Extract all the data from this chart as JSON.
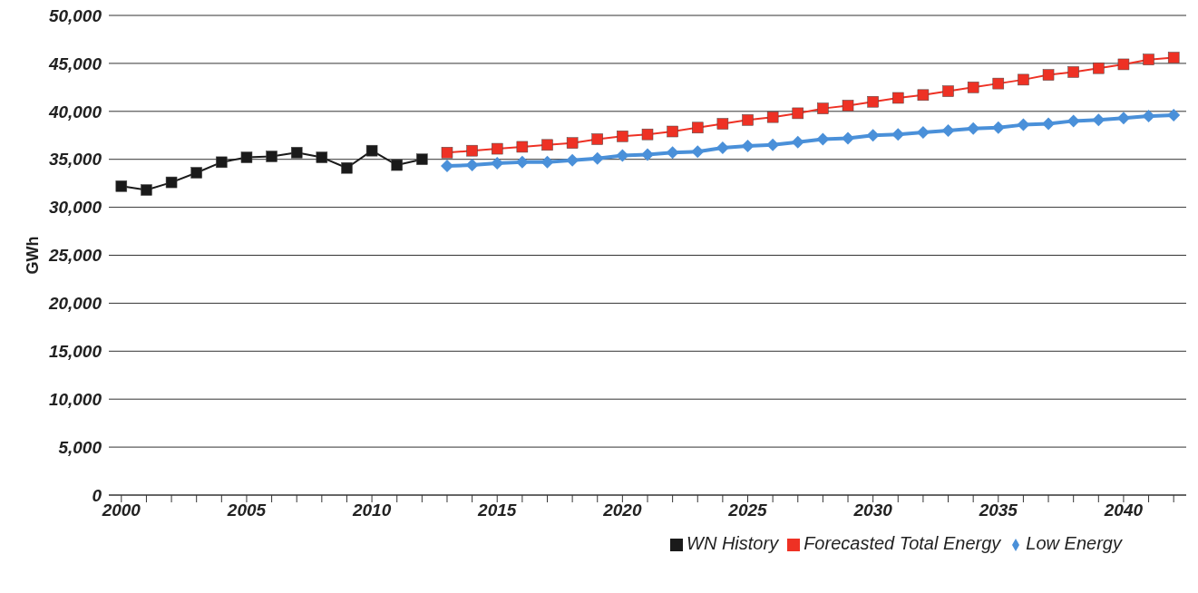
{
  "chart_data": {
    "type": "line",
    "ylabel": "GWh",
    "series": [
      {
        "name": "WN History",
        "color": "#1a1a1a",
        "marker": "square",
        "x": [
          2000,
          2001,
          2002,
          2003,
          2004,
          2005,
          2006,
          2007,
          2008,
          2009,
          2010,
          2011,
          2012
        ],
        "values": [
          32200,
          31800,
          32600,
          33600,
          34700,
          35200,
          35300,
          35700,
          35200,
          34100,
          35900,
          34400,
          35000
        ]
      },
      {
        "name": "Forecasted Total Energy",
        "color": "#ee3124",
        "marker": "square",
        "x": [
          2013,
          2014,
          2015,
          2016,
          2017,
          2018,
          2019,
          2020,
          2021,
          2022,
          2023,
          2024,
          2025,
          2026,
          2027,
          2028,
          2029,
          2030,
          2031,
          2032,
          2033,
          2034,
          2035,
          2036,
          2037,
          2038,
          2039,
          2040,
          2041,
          2042
        ],
        "values": [
          35700,
          35900,
          36100,
          36300,
          36500,
          36700,
          37100,
          37400,
          37600,
          37900,
          38300,
          38700,
          39100,
          39400,
          39800,
          40300,
          40600,
          41000,
          41400,
          41700,
          42100,
          42500,
          42900,
          43300,
          43800,
          44100,
          44500,
          44900,
          45400,
          45600
        ]
      },
      {
        "name": "Low Energy",
        "color": "#4a90d9",
        "marker": "diamond",
        "x": [
          2013,
          2014,
          2015,
          2016,
          2017,
          2018,
          2019,
          2020,
          2021,
          2022,
          2023,
          2024,
          2025,
          2026,
          2027,
          2028,
          2029,
          2030,
          2031,
          2032,
          2033,
          2034,
          2035,
          2036,
          2037,
          2038,
          2039,
          2040,
          2041,
          2042
        ],
        "values": [
          34300,
          34400,
          34600,
          34700,
          34700,
          34900,
          35100,
          35400,
          35500,
          35700,
          35800,
          36200,
          36400,
          36500,
          36800,
          37100,
          37200,
          37500,
          37600,
          37800,
          38000,
          38200,
          38300,
          38600,
          38700,
          39000,
          39100,
          39300,
          39500,
          39600
        ]
      }
    ],
    "xlim": [
      1999.5,
      2042.5
    ],
    "xticks": [
      {
        "value": 2000,
        "label": "2000"
      },
      {
        "value": 2001,
        "label": null
      },
      {
        "value": 2002,
        "label": null
      },
      {
        "value": 2003,
        "label": null
      },
      {
        "value": 2004,
        "label": null
      },
      {
        "value": 2005,
        "label": "2005"
      },
      {
        "value": 2006,
        "label": null
      },
      {
        "value": 2007,
        "label": null
      },
      {
        "value": 2008,
        "label": null
      },
      {
        "value": 2009,
        "label": null
      },
      {
        "value": 2010,
        "label": "2010"
      },
      {
        "value": 2011,
        "label": null
      },
      {
        "value": 2012,
        "label": null
      },
      {
        "value": 2013,
        "label": null
      },
      {
        "value": 2014,
        "label": null
      },
      {
        "value": 2015,
        "label": "2015"
      },
      {
        "value": 2016,
        "label": null
      },
      {
        "value": 2017,
        "label": null
      },
      {
        "value": 2018,
        "label": null
      },
      {
        "value": 2019,
        "label": null
      },
      {
        "value": 2020,
        "label": "2020"
      },
      {
        "value": 2021,
        "label": null
      },
      {
        "value": 2022,
        "label": null
      },
      {
        "value": 2023,
        "label": null
      },
      {
        "value": 2024,
        "label": null
      },
      {
        "value": 2025,
        "label": "2025"
      },
      {
        "value": 2026,
        "label": null
      },
      {
        "value": 2027,
        "label": null
      },
      {
        "value": 2028,
        "label": null
      },
      {
        "value": 2029,
        "label": null
      },
      {
        "value": 2030,
        "label": "2030"
      },
      {
        "value": 2031,
        "label": null
      },
      {
        "value": 2032,
        "label": null
      },
      {
        "value": 2033,
        "label": null
      },
      {
        "value": 2034,
        "label": null
      },
      {
        "value": 2035,
        "label": "2035"
      },
      {
        "value": 2036,
        "label": null
      },
      {
        "value": 2037,
        "label": null
      },
      {
        "value": 2038,
        "label": null
      },
      {
        "value": 2039,
        "label": null
      },
      {
        "value": 2040,
        "label": "2040"
      },
      {
        "value": 2041,
        "label": null
      },
      {
        "value": 2042,
        "label": null
      }
    ],
    "ylim": [
      0,
      50000
    ],
    "yticks": [
      0,
      {
        "value": 5000,
        "label": "5,000"
      },
      {
        "value": 10000,
        "label": "10,000"
      },
      {
        "value": 15000,
        "label": "15,000"
      },
      {
        "value": 20000,
        "label": "20,000"
      },
      {
        "value": 25000,
        "label": "25,000"
      },
      {
        "value": 30000,
        "label": "30,000"
      },
      {
        "value": 35000,
        "label": "35,000"
      },
      {
        "value": 40000,
        "label": "40,000"
      },
      {
        "value": 45000,
        "label": "45,000"
      },
      {
        "value": 50000,
        "label": "50,000"
      }
    ],
    "grid": "y",
    "legend": "bottom",
    "line_style": "solid"
  }
}
